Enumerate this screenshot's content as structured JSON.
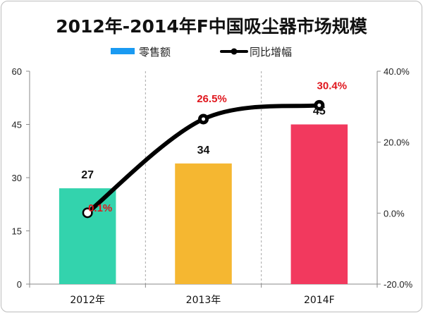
{
  "chart_data": {
    "type": "bar",
    "title": "2012年-2014年F中国吸尘器市场规模",
    "categories": [
      "2012年",
      "2013年",
      "2014F"
    ],
    "series": [
      {
        "name": "零售额",
        "type": "bar",
        "axis": "left",
        "values": [
          27,
          34,
          45
        ],
        "data_labels": [
          "27",
          "34",
          "45"
        ],
        "colors": [
          "#33d3ad",
          "#f5b731",
          "#f2395e"
        ]
      },
      {
        "name": "同比增幅",
        "type": "line",
        "axis": "right",
        "values": [
          0.1,
          26.5,
          30.4
        ],
        "data_labels": [
          "0.1%",
          "26.5%",
          "30.4%"
        ],
        "color": "#000000"
      }
    ],
    "left_axis": {
      "ylim": [
        0,
        60
      ],
      "ticks": [
        "0",
        "15",
        "30",
        "45",
        "60"
      ]
    },
    "right_axis": {
      "ylim": [
        -20,
        40
      ],
      "ticks": [
        "-20.0%",
        "0.0%",
        "20.0%",
        "40.0%"
      ]
    },
    "xlabel": "",
    "ylabel": "",
    "grid": "vertical",
    "legend_position": "top",
    "label_color": "#e0161d",
    "legend_bar_color": "#1a9af2"
  }
}
